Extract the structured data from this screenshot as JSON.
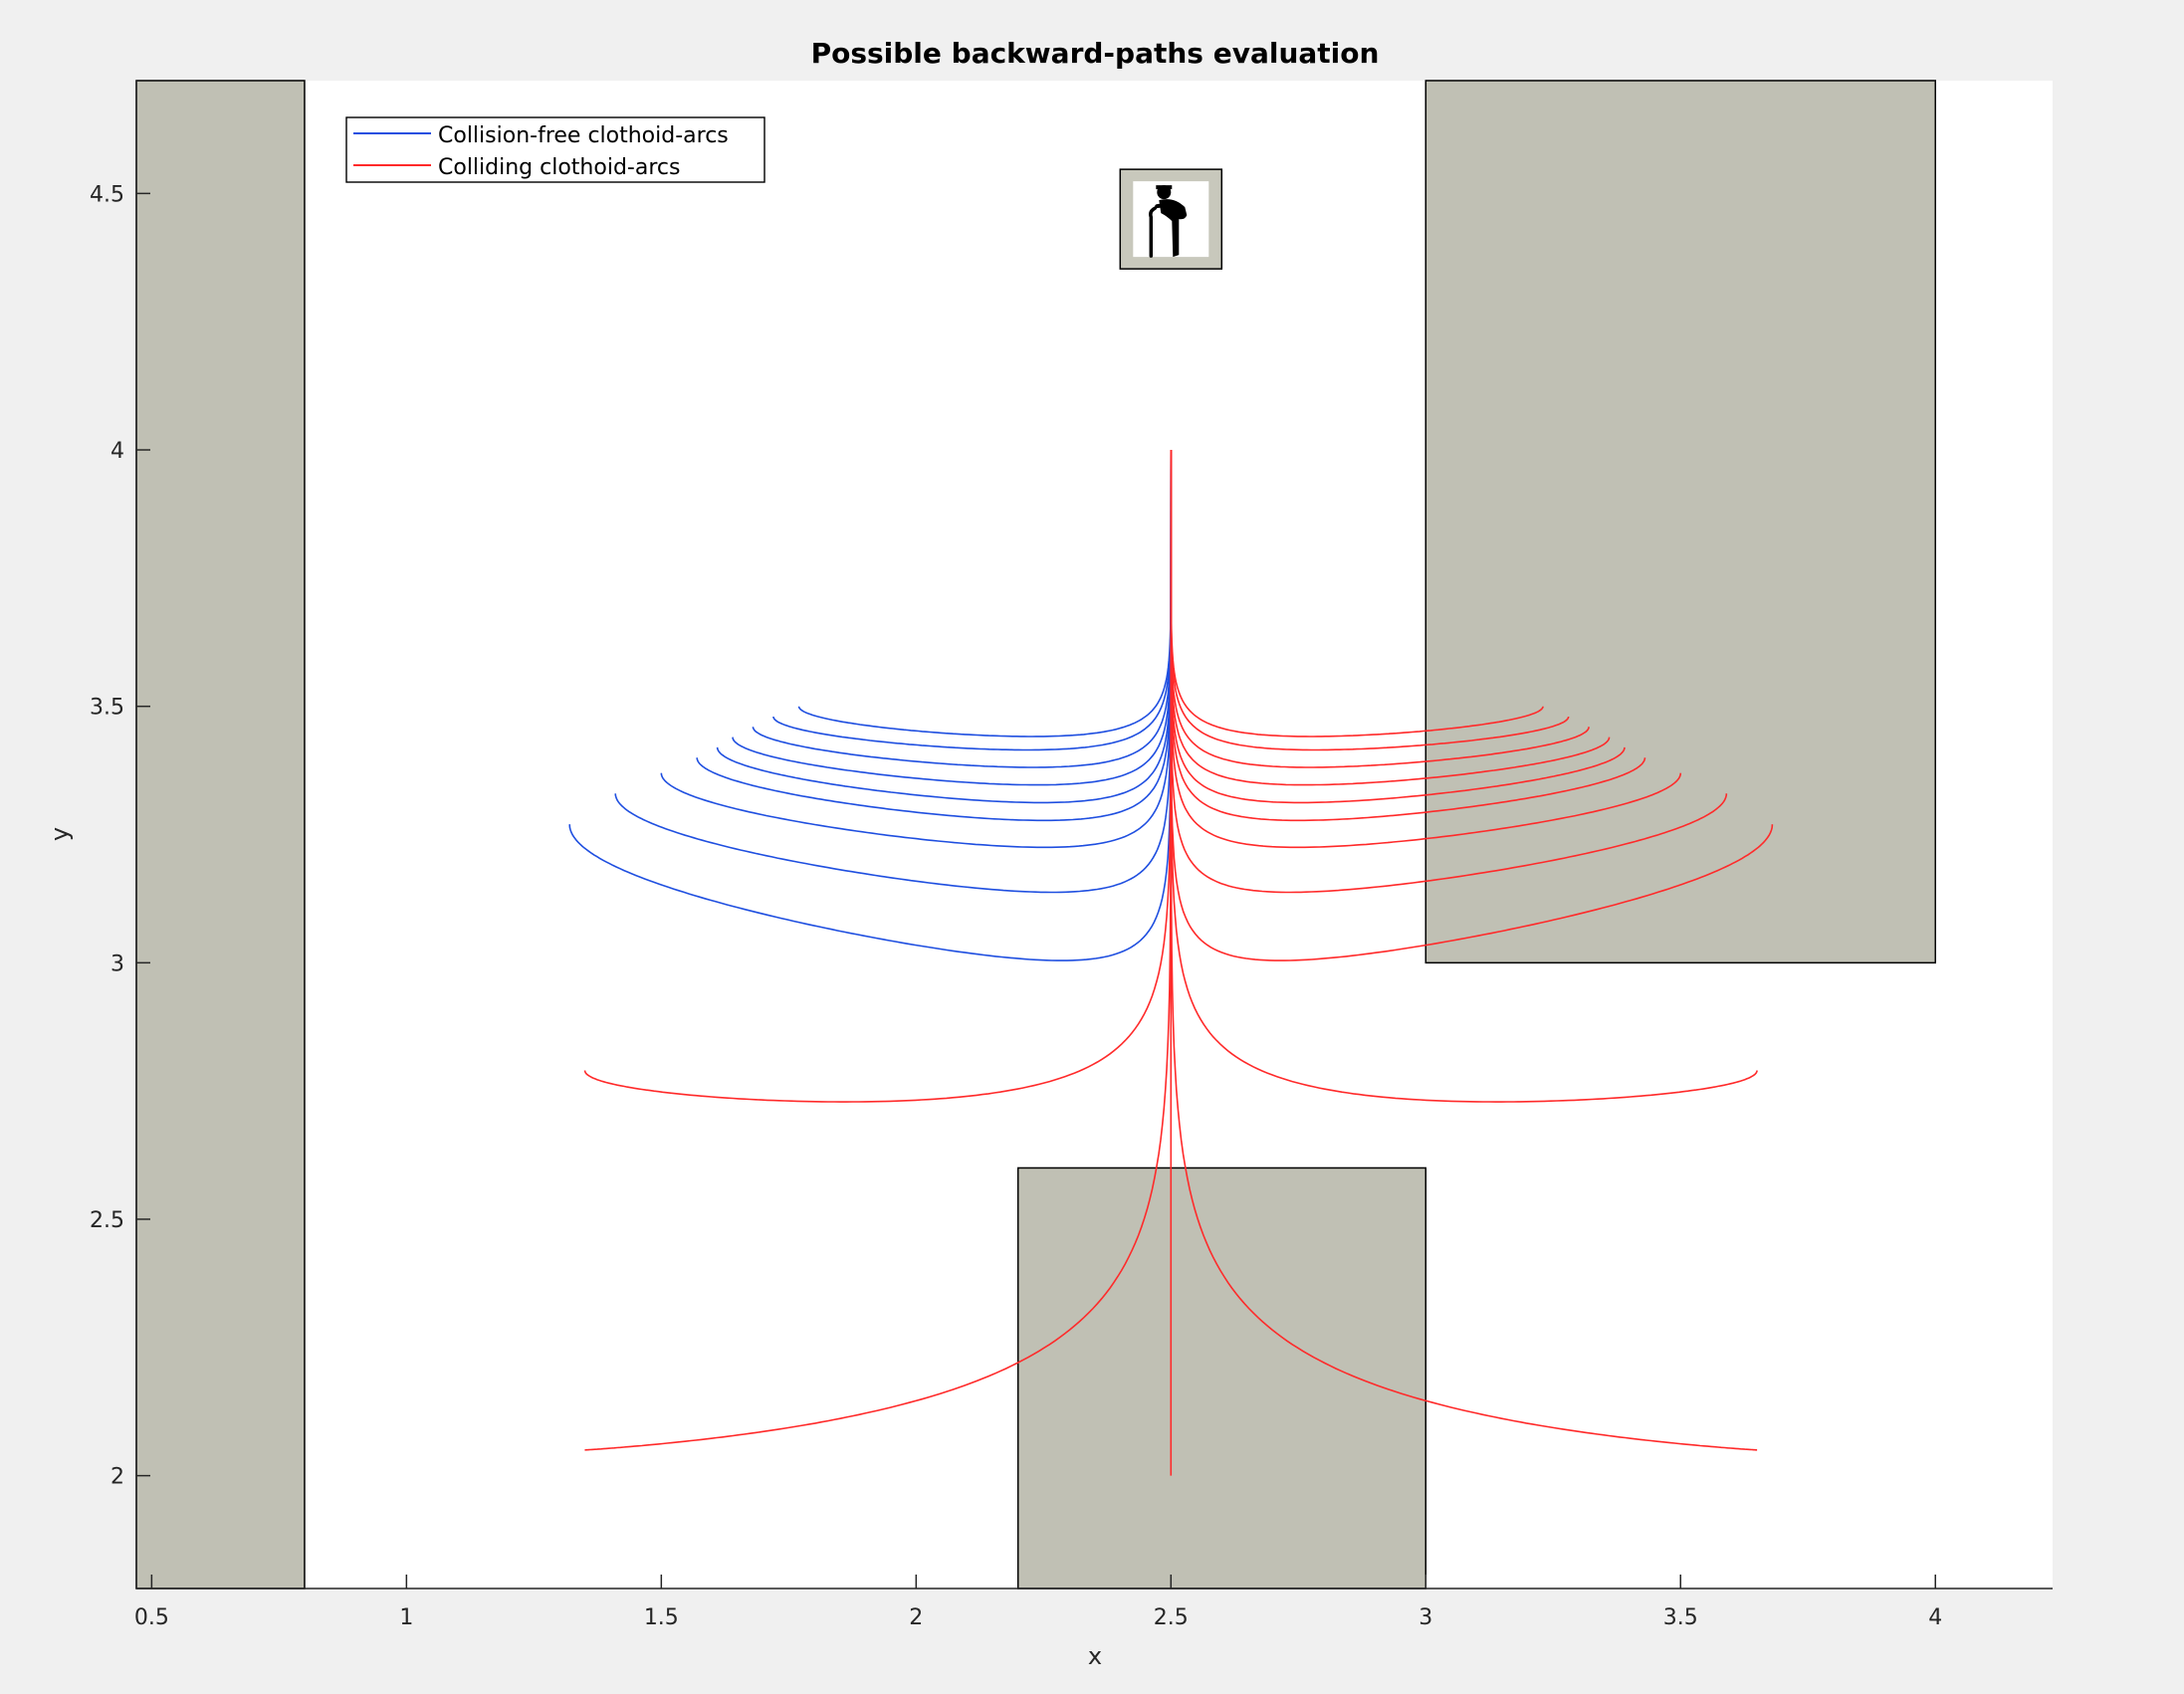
{
  "chart_data": {
    "type": "line",
    "title": "Possible backward-paths evaluation",
    "xlabel": "x",
    "ylabel": "y",
    "xlim": [
      0.47,
      4.23
    ],
    "ylim": [
      1.78,
      4.72
    ],
    "xticks": [
      0.5,
      1,
      1.5,
      2,
      2.5,
      3,
      3.5,
      4
    ],
    "xtick_labels": [
      "0.5",
      "1",
      "1.5",
      "2",
      "2.5",
      "3",
      "3.5",
      "4"
    ],
    "yticks": [
      2,
      2.5,
      3,
      3.5,
      4,
      4.5
    ],
    "ytick_labels": [
      "2",
      "2.5",
      "3",
      "3.5",
      "4",
      "4.5"
    ],
    "grid": false,
    "legend_position": "top-left",
    "legend": [
      {
        "label": "Collision-free clothoid-arcs",
        "color": "#1f4fe0"
      },
      {
        "label": "Colliding clothoid-arcs",
        "color": "#ff2a2a"
      }
    ],
    "obstacle_color": "#c0c0b4",
    "obstacles": [
      {
        "name": "left-wall",
        "x0": 0.47,
        "x1": 0.8,
        "y0": 1.78,
        "y1": 4.72
      },
      {
        "name": "right-block",
        "x0": 3.0,
        "x1": 4.0,
        "y0": 3.0,
        "y1": 4.72
      },
      {
        "name": "bottom-block",
        "x0": 2.2,
        "x1": 3.0,
        "y0": 1.78,
        "y1": 2.6
      }
    ],
    "marker": {
      "icon": "elderly-person-icon",
      "x": 2.5,
      "y": 4.45
    },
    "start_point": {
      "x": 2.5,
      "y": 4.0
    },
    "series": [
      {
        "name": "Collision-free clothoid-arcs",
        "color": "#1f4fe0",
        "curves": [
          {
            "end_x": 1.77,
            "end_y": 3.5,
            "min_y": 3.38
          },
          {
            "end_x": 1.72,
            "end_y": 3.48,
            "min_y": 3.35
          },
          {
            "end_x": 1.68,
            "end_y": 3.46,
            "min_y": 3.31
          },
          {
            "end_x": 1.64,
            "end_y": 3.44,
            "min_y": 3.27
          },
          {
            "end_x": 1.61,
            "end_y": 3.42,
            "min_y": 3.23
          },
          {
            "end_x": 1.57,
            "end_y": 3.4,
            "min_y": 3.19
          },
          {
            "end_x": 1.5,
            "end_y": 3.37,
            "min_y": 3.13
          },
          {
            "end_x": 1.41,
            "end_y": 3.33,
            "min_y": 3.03
          },
          {
            "end_x": 1.32,
            "end_y": 3.27,
            "min_y": 2.88
          }
        ]
      },
      {
        "name": "Colliding clothoid-arcs",
        "color": "#ff2a2a",
        "curves": [
          {
            "end_x": 3.23,
            "end_y": 3.5,
            "min_y": 3.38
          },
          {
            "end_x": 3.28,
            "end_y": 3.48,
            "min_y": 3.35
          },
          {
            "end_x": 3.32,
            "end_y": 3.46,
            "min_y": 3.31
          },
          {
            "end_x": 3.36,
            "end_y": 3.44,
            "min_y": 3.27
          },
          {
            "end_x": 3.39,
            "end_y": 3.42,
            "min_y": 3.23
          },
          {
            "end_x": 3.43,
            "end_y": 3.4,
            "min_y": 3.19
          },
          {
            "end_x": 3.5,
            "end_y": 3.37,
            "min_y": 3.13
          },
          {
            "end_x": 3.59,
            "end_y": 3.33,
            "min_y": 3.03
          },
          {
            "end_x": 3.68,
            "end_y": 3.27,
            "min_y": 2.88
          },
          {
            "end_x": 1.35,
            "end_y": 2.79,
            "min_y": 2.62
          },
          {
            "end_x": 3.65,
            "end_y": 2.79,
            "min_y": 2.62
          },
          {
            "end_x": 1.35,
            "end_y": 2.05,
            "min_y": 2.05
          },
          {
            "end_x": 3.65,
            "end_y": 2.05,
            "min_y": 2.05
          },
          {
            "end_x": 2.5,
            "end_y": 2.0,
            "min_y": 2.0
          }
        ]
      }
    ]
  }
}
